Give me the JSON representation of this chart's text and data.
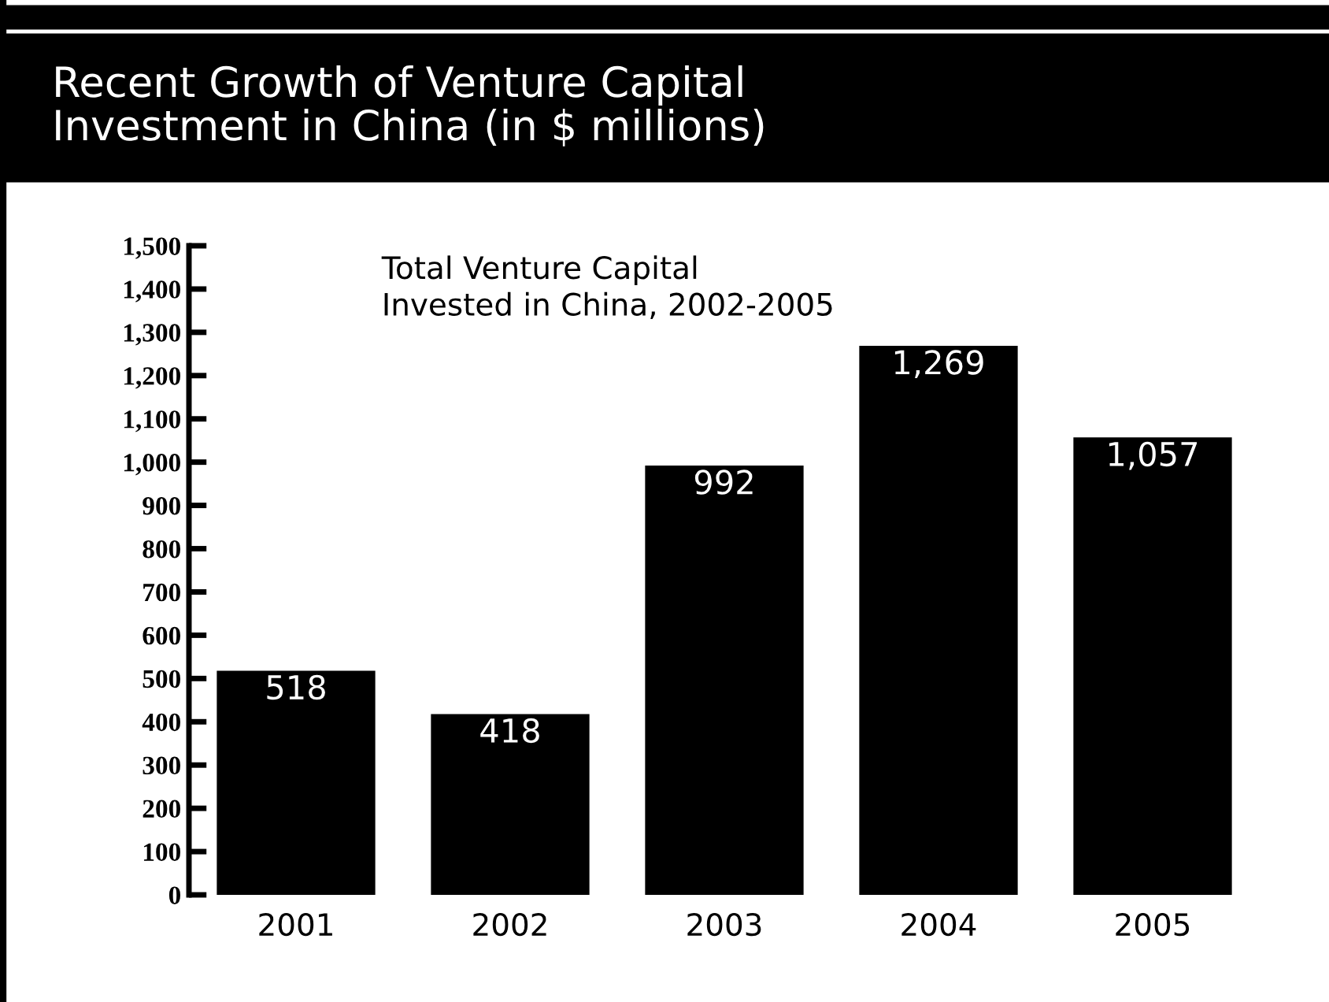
{
  "chart_data": {
    "type": "bar",
    "title": "Recent Growth of Venture Capital\nInvestment in China (in $ millions)",
    "subtitle": "Total Venture Capital\nInvested in China, 2002-2005",
    "categories": [
      "2001",
      "2002",
      "2003",
      "2004",
      "2005"
    ],
    "values": [
      518,
      418,
      992,
      1269,
      1057
    ],
    "value_labels": [
      "518",
      "418",
      "992",
      "1,269",
      "1,057"
    ],
    "color": "#000000",
    "ylim": [
      0,
      1500
    ],
    "yticks": [
      0,
      100,
      200,
      300,
      400,
      500,
      600,
      700,
      800,
      900,
      {
        "value": 1000,
        "label": "1,000"
      },
      {
        "value": 1100,
        "label": "1,100"
      },
      {
        "value": 1200,
        "label": "1,200"
      },
      {
        "value": 1300,
        "label": "1,300"
      },
      {
        "value": 1400,
        "label": "1,400"
      },
      {
        "value": 1500,
        "label": "1,500"
      }
    ],
    "grid": false
  }
}
